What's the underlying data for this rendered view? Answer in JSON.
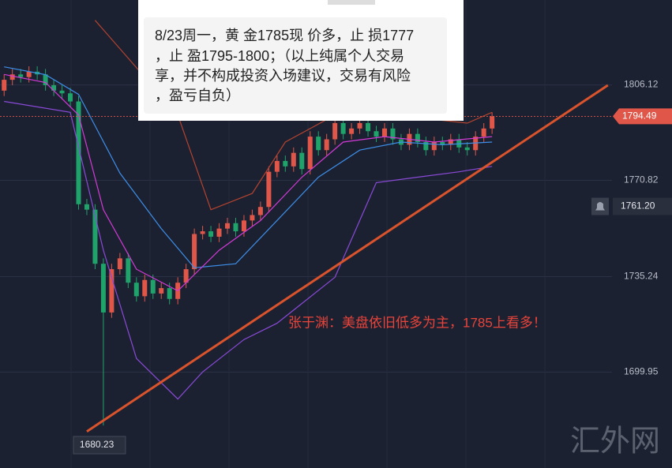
{
  "chart_data": {
    "type": "candlestick",
    "xlim": [
      -0.5,
      73.5
    ],
    "ylim": [
      1664.5,
      1837.5
    ],
    "yticks": [
      1699.95,
      1735.24,
      1770.82,
      1806.12
    ],
    "grid": true,
    "up_color": "#e0574a",
    "down_color": "#1fa36b",
    "open": [
      1804,
      1808,
      1810,
      1809,
      1811,
      1810,
      1806,
      1804,
      1803,
      1800,
      1762,
      1760,
      1740,
      1722,
      1738,
      1742,
      1733,
      1728,
      1734,
      1729,
      1731,
      1727,
      1733,
      1738,
      1751,
      1752,
      1750,
      1753,
      1755,
      1752,
      1756,
      1758,
      1761,
      1774,
      1778,
      1776,
      1781,
      1775,
      1787,
      1782,
      1786,
      1792,
      1788,
      1790,
      1792,
      1789,
      1787,
      1790,
      1786,
      1784,
      1788,
      1785,
      1782,
      1785,
      1784,
      1786,
      1783,
      1782,
      1787,
      1790
    ],
    "high": [
      1810,
      1812,
      1812,
      1813,
      1813,
      1812,
      1808,
      1806,
      1805,
      1802,
      1764,
      1762,
      1742,
      1740,
      1744,
      1744,
      1735,
      1736,
      1736,
      1733,
      1733,
      1735,
      1740,
      1753,
      1754,
      1754,
      1755,
      1757,
      1757,
      1758,
      1760,
      1763,
      1776,
      1780,
      1780,
      1783,
      1783,
      1789,
      1789,
      1788,
      1794,
      1794,
      1792,
      1794,
      1794,
      1791,
      1792,
      1792,
      1788,
      1790,
      1790,
      1787,
      1787,
      1787,
      1788,
      1788,
      1785,
      1789,
      1792,
      1796
    ],
    "low": [
      1802,
      1806,
      1807,
      1807,
      1808,
      1804,
      1802,
      1801,
      1798,
      1760,
      1758,
      1738,
      1680.23,
      1720,
      1736,
      1731,
      1726,
      1726,
      1727,
      1727,
      1725,
      1725,
      1731,
      1736,
      1749,
      1748,
      1748,
      1751,
      1750,
      1750,
      1754,
      1756,
      1759,
      1772,
      1774,
      1774,
      1773,
      1773,
      1780,
      1780,
      1784,
      1786,
      1786,
      1788,
      1787,
      1785,
      1785,
      1784,
      1782,
      1782,
      1783,
      1780,
      1780,
      1782,
      1782,
      1781,
      1780,
      1780,
      1785,
      1788
    ],
    "close": [
      1808,
      1810,
      1809,
      1811,
      1810,
      1806,
      1804,
      1803,
      1800,
      1762,
      1760,
      1740,
      1722,
      1738,
      1742,
      1733,
      1728,
      1734,
      1729,
      1731,
      1727,
      1733,
      1738,
      1751,
      1752,
      1750,
      1753,
      1755,
      1752,
      1756,
      1758,
      1761,
      1774,
      1778,
      1776,
      1781,
      1775,
      1787,
      1782,
      1786,
      1792,
      1788,
      1790,
      1792,
      1789,
      1787,
      1790,
      1786,
      1784,
      1788,
      1785,
      1782,
      1785,
      1784,
      1786,
      1783,
      1782,
      1787,
      1790,
      1794.49
    ],
    "lines": [
      {
        "color": "#3d8ee8",
        "x": [
          0,
          5,
          9,
          14,
          19,
          23,
          28,
          33,
          38,
          43,
          48,
          53,
          59
        ],
        "values": [
          1812.8,
          1809.9,
          1802.6,
          1773.5,
          1753,
          1738.5,
          1740,
          1756,
          1772,
          1782,
          1785,
          1784,
          1785
        ]
      },
      {
        "color": "#d23ad6",
        "x": [
          0,
          5,
          9,
          12,
          16,
          21,
          26,
          31,
          36,
          41,
          46,
          52,
          59
        ],
        "values": [
          1810,
          1807,
          1795,
          1760,
          1738,
          1730,
          1745,
          1756,
          1772,
          1785,
          1787,
          1785,
          1787
        ]
      },
      {
        "color": "#8a4ad8",
        "x": [
          0,
          8,
          12,
          16,
          21,
          24,
          29,
          33,
          40,
          45,
          50,
          55,
          59
        ],
        "values": [
          1800,
          1796,
          1745,
          1705,
          1690,
          1700,
          1712,
          1718,
          1735,
          1770,
          1772,
          1774,
          1776
        ]
      },
      {
        "color": "#b3432f",
        "x": [
          11,
          21,
          25,
          30,
          34,
          40,
          50,
          56,
          59
        ],
        "values": [
          1830,
          1795,
          1760,
          1766,
          1785,
          1795,
          1794,
          1792,
          1796
        ]
      }
    ],
    "trendline": {
      "color": "#d9532c",
      "x": [
        10,
        73
      ],
      "values": [
        1678,
        1806
      ]
    },
    "current_price": 1794.49,
    "alert_price": {
      "value": 1761.2,
      "label": "1761.20"
    },
    "low_label": 1680.23,
    "note": [
      "8/23周一，黄 金1785现 价多，止 损1777",
      "，止 盈1795-1800；（以上纯属个人交易",
      "享，并不构成投资入场建议，交易有风险",
      "，盈亏自负）"
    ],
    "annotation": "张于渊：美盘依旧低多为主，1785上看多！",
    "watermark": "汇外网"
  }
}
